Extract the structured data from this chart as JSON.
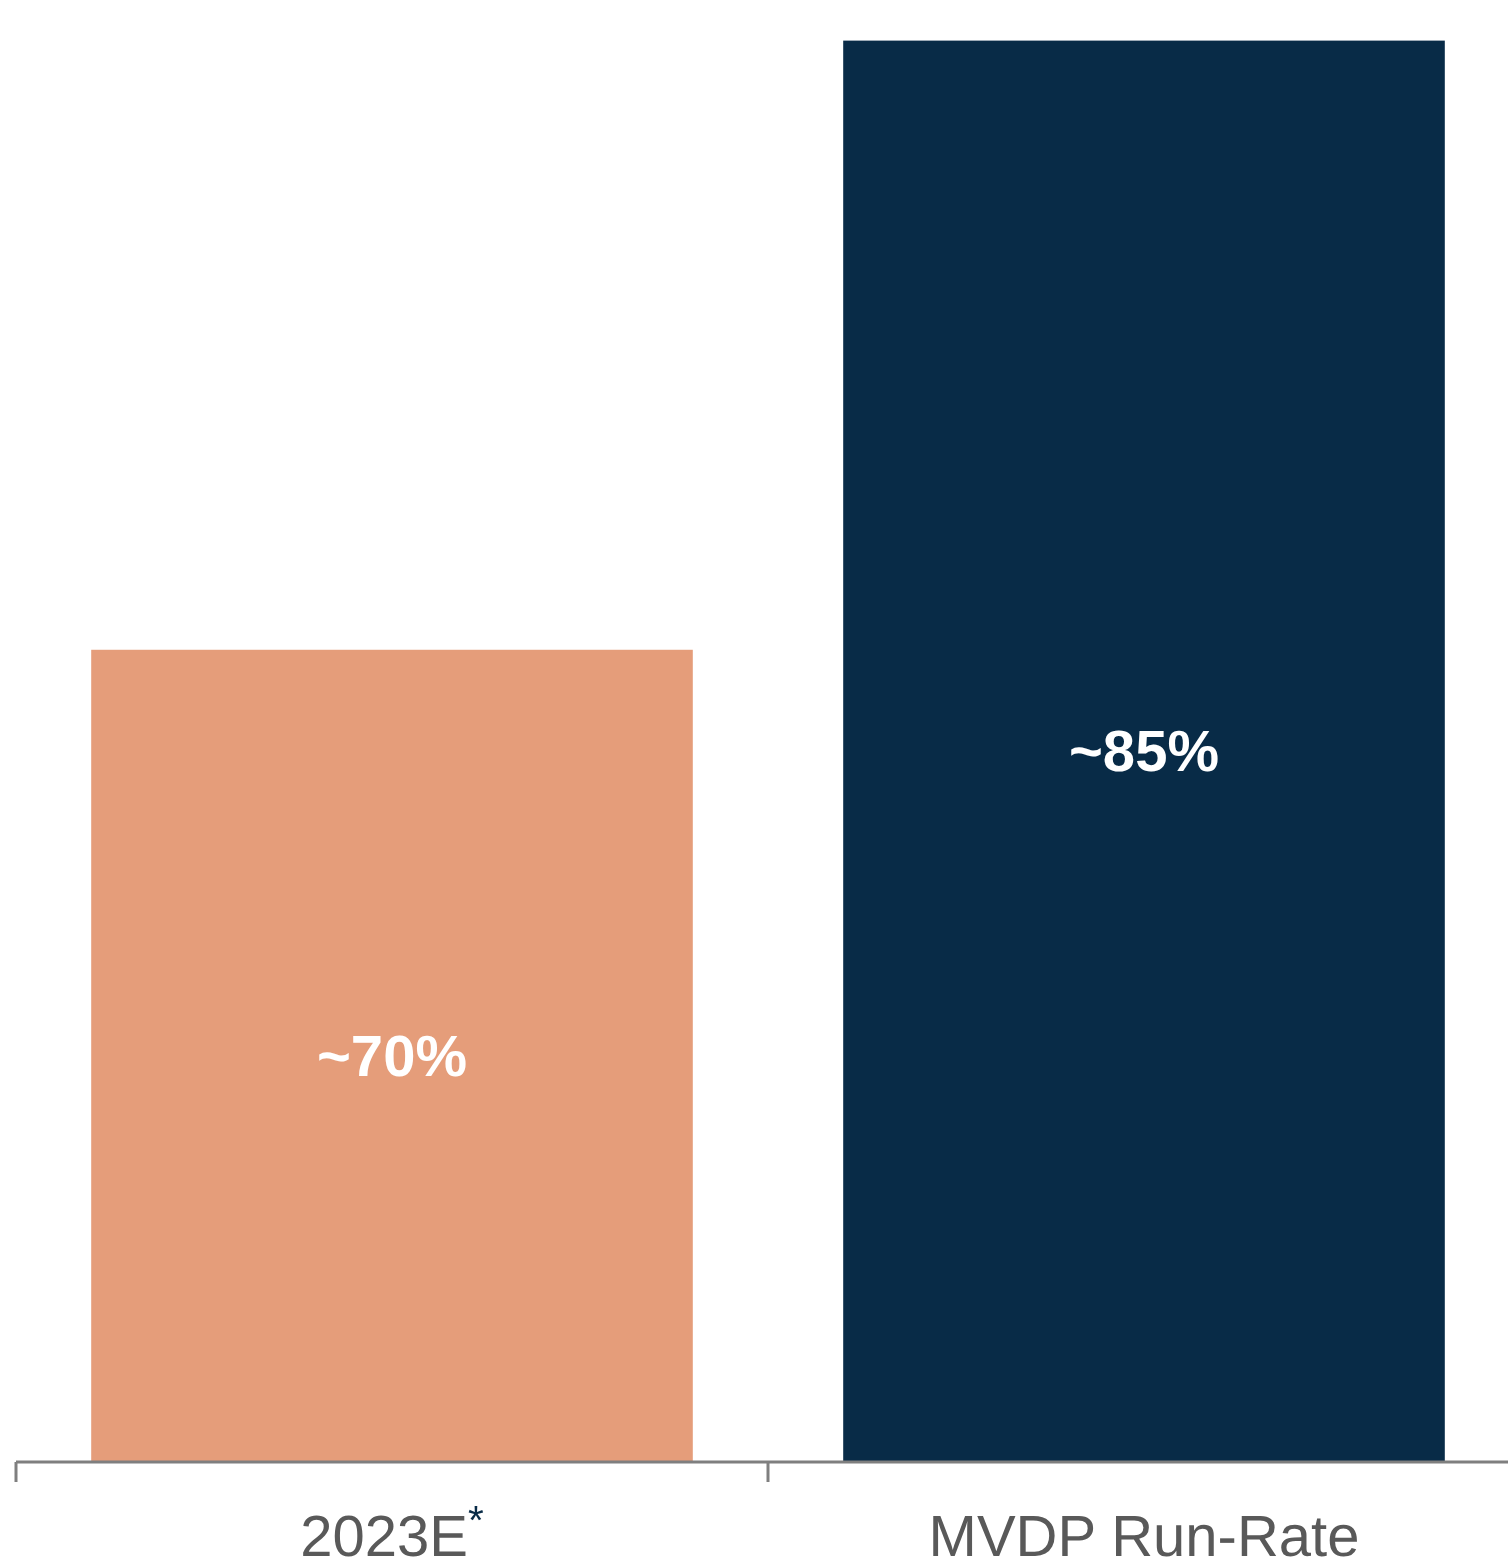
{
  "chart_data": {
    "type": "bar",
    "categories": [
      "2023E$^{*}$",
      "MVDP Run-Rate"
    ],
    "values": [
      70,
      85
    ],
    "colors": [
      "#e59d7a",
      "#082b47"
    ],
    "value_labels": [
      "~70%",
      "~85%"
    ],
    "ylim": [
      50,
      86
    ],
    "tick_labels": "x"
  }
}
